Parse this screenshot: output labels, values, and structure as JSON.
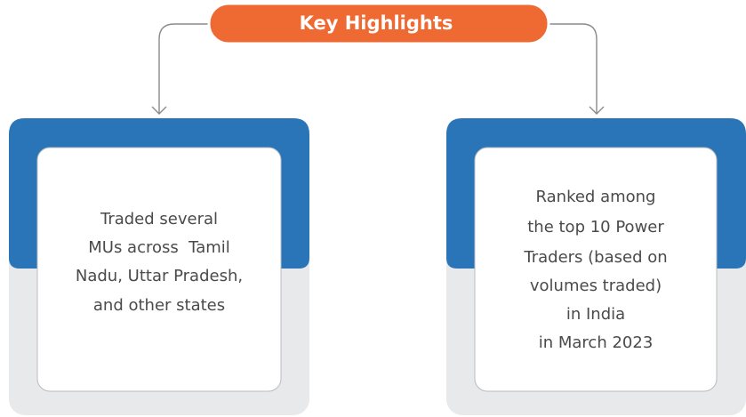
{
  "header": {
    "title": "Key Highlights"
  },
  "cards": [
    {
      "lines": [
        "Traded several",
        "MUs across  Tamil",
        "Nadu, Uttar Pradesh,",
        "and other states"
      ]
    },
    {
      "lines": [
        "Ranked among",
        "the top 10 Power",
        "Traders (based on",
        "volumes traded)",
        "in India",
        "in March 2023"
      ]
    }
  ]
}
